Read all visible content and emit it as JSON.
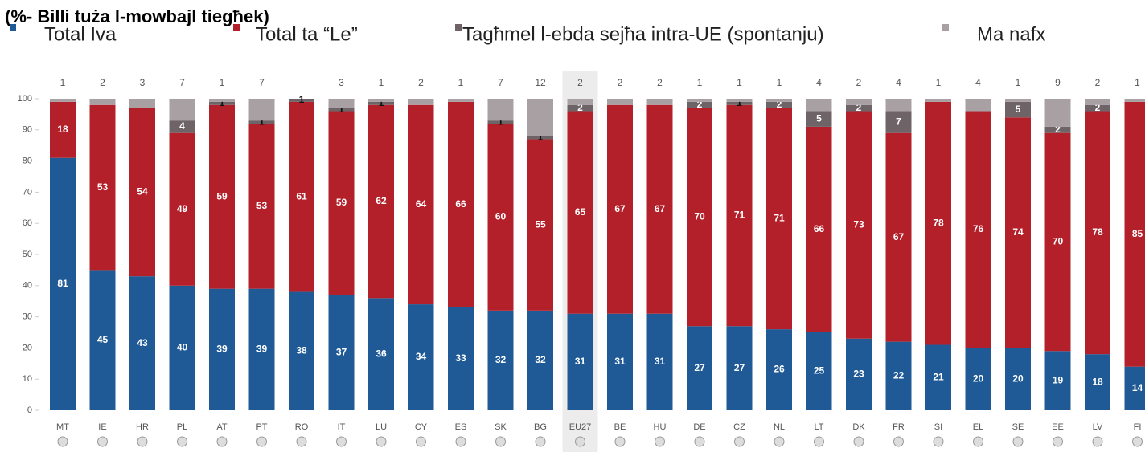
{
  "chart_data": {
    "type": "stacked_bar",
    "title": "(%- Billi tuża l-mowbajl tiegħek)",
    "categories": [
      "MT",
      "IE",
      "HR",
      "PL",
      "AT",
      "PT",
      "RO",
      "IT",
      "LU",
      "CY",
      "ES",
      "SK",
      "BG",
      "EU27",
      "BE",
      "HU",
      "DE",
      "CZ",
      "NL",
      "LT",
      "DK",
      "FR",
      "SI",
      "EL",
      "SE",
      "EE",
      "LV",
      "FI"
    ],
    "series": [
      {
        "name": "Total Iva",
        "color": "#1f5a96",
        "values": [
          81,
          45,
          43,
          40,
          39,
          39,
          38,
          37,
          36,
          34,
          33,
          32,
          32,
          31,
          31,
          31,
          27,
          27,
          26,
          25,
          23,
          22,
          21,
          20,
          20,
          19,
          18,
          14
        ]
      },
      {
        "name": "Total ta “Le”",
        "color": "#b3202a",
        "values": [
          18,
          53,
          54,
          49,
          59,
          53,
          61,
          59,
          62,
          64,
          66,
          60,
          55,
          65,
          67,
          67,
          70,
          71,
          71,
          66,
          73,
          67,
          78,
          76,
          74,
          70,
          78,
          85
        ]
      },
      {
        "name": "Tagħmel l-ebda sejħa intra-UE (spontanju)",
        "color": "#6e6468",
        "values": [
          null,
          null,
          null,
          4,
          1,
          1,
          1,
          1,
          1,
          null,
          null,
          1,
          1,
          2,
          null,
          null,
          2,
          1,
          2,
          5,
          2,
          7,
          null,
          null,
          5,
          2,
          2,
          null
        ]
      },
      {
        "name": "Ma nafx",
        "color": "#a8a0a3",
        "values": [
          1,
          2,
          3,
          7,
          1,
          7,
          null,
          3,
          1,
          2,
          1,
          7,
          12,
          2,
          2,
          2,
          1,
          1,
          1,
          4,
          2,
          4,
          1,
          4,
          1,
          9,
          2,
          1
        ]
      }
    ],
    "ylim": [
      0,
      100
    ],
    "yticks": [
      0,
      10,
      20,
      30,
      40,
      50,
      60,
      70,
      80,
      90,
      100
    ]
  }
}
